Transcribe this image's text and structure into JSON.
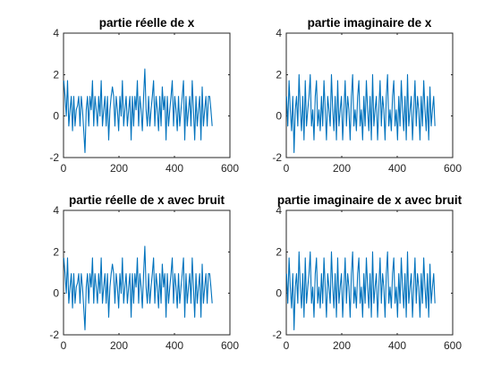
{
  "line_color": "#0072bd",
  "chart_data": [
    {
      "type": "line",
      "title": "partie réelle de x",
      "xlabel": "",
      "ylabel": "",
      "xlim": [
        0,
        600
      ],
      "ylim": [
        -2,
        4
      ],
      "xticks": [
        0,
        200,
        400,
        600
      ],
      "yticks": [
        -2,
        0,
        2,
        4
      ],
      "x_start": 1,
      "x_end": 536,
      "y": [
        1.71,
        0.95,
        0.0,
        1.71,
        -0.48,
        0.3,
        0.95,
        -0.71,
        0.95,
        -0.48,
        0.3,
        0.5,
        0.95,
        -0.48,
        0.95,
        0.3,
        -0.71,
        -1.76,
        0.3,
        0.95,
        -0.48,
        0.95,
        0.3,
        1.71,
        -0.48,
        0.95,
        0.3,
        -0.48,
        0.95,
        0.0,
        1.71,
        -0.48,
        0.3,
        0.95,
        -0.48,
        0.95,
        -1.15,
        0.3,
        0.95,
        1.41,
        0.95,
        -0.48,
        0.95,
        0.3,
        -0.71,
        0.95,
        0.0,
        1.71,
        -0.48,
        0.3,
        0.95,
        -0.48,
        0.3,
        0.95,
        -1.15,
        0.95,
        -0.48,
        0.95,
        0.3,
        1.71,
        -0.48,
        0.95,
        0.3,
        -0.71,
        0.95,
        2.27,
        0.3,
        -0.48,
        0.95,
        -0.48,
        0.3,
        0.95,
        1.71,
        -0.48,
        0.95,
        0.3,
        -0.71,
        0.95,
        -0.48,
        1.41,
        0.3,
        0.95,
        -1.15,
        0.95,
        -0.48,
        0.3,
        0.95,
        1.71,
        -0.48,
        0.95,
        0.3,
        -0.71,
        0.95,
        -0.48,
        0.3,
        0.95,
        1.71,
        -1.15,
        0.95,
        -0.48,
        0.3,
        0.95,
        -0.48,
        1.71,
        0.3,
        -1.15,
        0.95,
        -0.48,
        0.3,
        0.95,
        -1.15,
        1.41,
        -0.48,
        0.3,
        0.95,
        -0.48,
        0.95,
        0.95,
        0.3,
        -0.48
      ]
    },
    {
      "type": "line",
      "title": "partie imaginaire de x",
      "xlabel": "",
      "ylabel": "",
      "xlim": [
        0,
        600
      ],
      "ylim": [
        -2,
        4
      ],
      "xticks": [
        0,
        200,
        400,
        600
      ],
      "yticks": [
        -2,
        0,
        2,
        4
      ],
      "x_start": 1,
      "x_end": 536,
      "y": [
        0.95,
        -0.48,
        1.71,
        0.3,
        -0.71,
        0.95,
        -1.76,
        0.3,
        0.95,
        -0.48,
        2.0,
        0.3,
        -0.71,
        0.95,
        -1.15,
        1.71,
        -0.48,
        0.3,
        0.95,
        2.0,
        -0.48,
        0.3,
        -1.15,
        0.95,
        1.71,
        -0.48,
        0.3,
        -0.71,
        0.95,
        -0.48,
        1.71,
        0.3,
        -1.15,
        0.95,
        0.3,
        -0.48,
        2.0,
        0.3,
        -0.71,
        0.95,
        -1.15,
        1.71,
        -0.48,
        0.3,
        0.95,
        -1.15,
        0.3,
        1.71,
        -0.48,
        0.95,
        0.3,
        -1.15,
        0.95,
        2.0,
        -0.48,
        0.3,
        -0.71,
        0.95,
        1.71,
        -0.48,
        0.3,
        -1.15,
        0.95,
        -0.48,
        1.71,
        0.3,
        -0.71,
        0.95,
        -1.15,
        2.0,
        -0.48,
        0.3,
        0.95,
        -1.15,
        0.3,
        1.71,
        -0.48,
        0.95,
        0.3,
        -1.15,
        0.95,
        2.0,
        -0.48,
        0.3,
        -0.71,
        0.95,
        1.71,
        -0.48,
        0.3,
        -1.15,
        0.95,
        -0.48,
        1.71,
        0.3,
        -0.71,
        0.95,
        -1.15,
        2.0,
        -0.48,
        0.3,
        0.95,
        -1.15,
        0.3,
        1.71,
        -0.48,
        0.95,
        0.3,
        -1.15,
        0.95,
        -0.48,
        1.71,
        0.3,
        -0.71,
        0.95,
        -1.15,
        1.41,
        -0.48,
        0.3,
        0.95,
        -0.48
      ]
    },
    {
      "type": "line",
      "title": "partie réelle de x avec bruit",
      "xlabel": "",
      "ylabel": "",
      "xlim": [
        0,
        600
      ],
      "ylim": [
        -2,
        4
      ],
      "xticks": [
        0,
        200,
        400,
        600
      ],
      "yticks": [
        -2,
        0,
        2,
        4
      ],
      "x_start": 1,
      "x_end": 536,
      "y": [
        1.71,
        0.95,
        0.0,
        1.71,
        -0.48,
        0.3,
        0.95,
        -0.71,
        0.95,
        -0.48,
        0.3,
        0.5,
        0.95,
        -0.48,
        0.95,
        0.3,
        -0.71,
        -1.76,
        0.3,
        0.95,
        -0.48,
        0.95,
        0.3,
        1.71,
        -0.48,
        0.95,
        0.3,
        -0.48,
        0.95,
        0.0,
        1.71,
        -0.48,
        0.3,
        0.95,
        -0.48,
        0.95,
        -1.15,
        0.3,
        0.95,
        1.41,
        0.95,
        -0.48,
        0.95,
        0.3,
        -0.71,
        0.95,
        0.0,
        1.71,
        -0.48,
        0.3,
        0.95,
        -0.48,
        0.3,
        0.95,
        -1.15,
        0.95,
        -0.48,
        0.95,
        0.3,
        1.71,
        -0.48,
        0.95,
        0.3,
        -0.71,
        0.95,
        2.27,
        0.3,
        -0.48,
        0.95,
        -0.48,
        0.3,
        0.95,
        1.71,
        -0.48,
        0.95,
        0.3,
        -0.71,
        0.95,
        -0.48,
        1.41,
        0.3,
        0.95,
        -1.15,
        0.95,
        -0.48,
        0.3,
        0.95,
        1.71,
        -0.48,
        0.95,
        0.3,
        -0.71,
        0.95,
        -0.48,
        0.3,
        0.95,
        1.71,
        -1.15,
        0.95,
        -0.48,
        0.3,
        0.95,
        -0.48,
        1.71,
        0.3,
        -1.15,
        0.95,
        -0.48,
        0.3,
        0.95,
        -1.15,
        1.41,
        -0.48,
        0.3,
        0.95,
        -0.48,
        0.95,
        0.95,
        0.3,
        -0.48
      ]
    },
    {
      "type": "line",
      "title": "partie imaginaire de x avec bruit",
      "xlabel": "",
      "ylabel": "",
      "xlim": [
        0,
        600
      ],
      "ylim": [
        -2,
        4
      ],
      "xticks": [
        0,
        200,
        400,
        600
      ],
      "yticks": [
        -2,
        0,
        2,
        4
      ],
      "x_start": 1,
      "x_end": 536,
      "y": [
        0.95,
        -0.48,
        1.71,
        0.3,
        -0.71,
        0.95,
        -1.76,
        0.3,
        0.95,
        -0.48,
        2.0,
        0.3,
        -0.71,
        0.95,
        -1.15,
        1.71,
        -0.48,
        0.3,
        0.95,
        2.0,
        -0.48,
        0.3,
        -1.15,
        0.95,
        1.71,
        -0.48,
        0.3,
        -0.71,
        0.95,
        -0.48,
        1.71,
        0.3,
        -1.15,
        0.95,
        0.3,
        -0.48,
        2.0,
        0.3,
        -0.71,
        0.95,
        -1.15,
        1.71,
        -0.48,
        0.3,
        0.95,
        -1.15,
        0.3,
        1.71,
        -0.48,
        0.95,
        0.3,
        -1.15,
        0.95,
        2.0,
        -0.48,
        0.3,
        -0.71,
        0.95,
        1.71,
        -0.48,
        0.3,
        -1.15,
        0.95,
        -0.48,
        1.71,
        0.3,
        -0.71,
        0.95,
        -1.15,
        2.0,
        -0.48,
        0.3,
        0.95,
        -1.15,
        0.3,
        1.71,
        -0.48,
        0.95,
        0.3,
        -1.15,
        0.95,
        2.0,
        -0.48,
        0.3,
        -0.71,
        0.95,
        1.71,
        -0.48,
        0.3,
        -1.15,
        0.95,
        -0.48,
        1.71,
        0.3,
        -0.71,
        0.95,
        -1.15,
        2.0,
        -0.48,
        0.3,
        0.95,
        -1.15,
        0.3,
        1.71,
        -0.48,
        0.95,
        0.3,
        -1.15,
        0.95,
        -0.48,
        1.71,
        0.3,
        -0.71,
        0.95,
        -1.15,
        1.41,
        -0.48,
        0.3,
        0.95,
        -0.48
      ]
    }
  ]
}
